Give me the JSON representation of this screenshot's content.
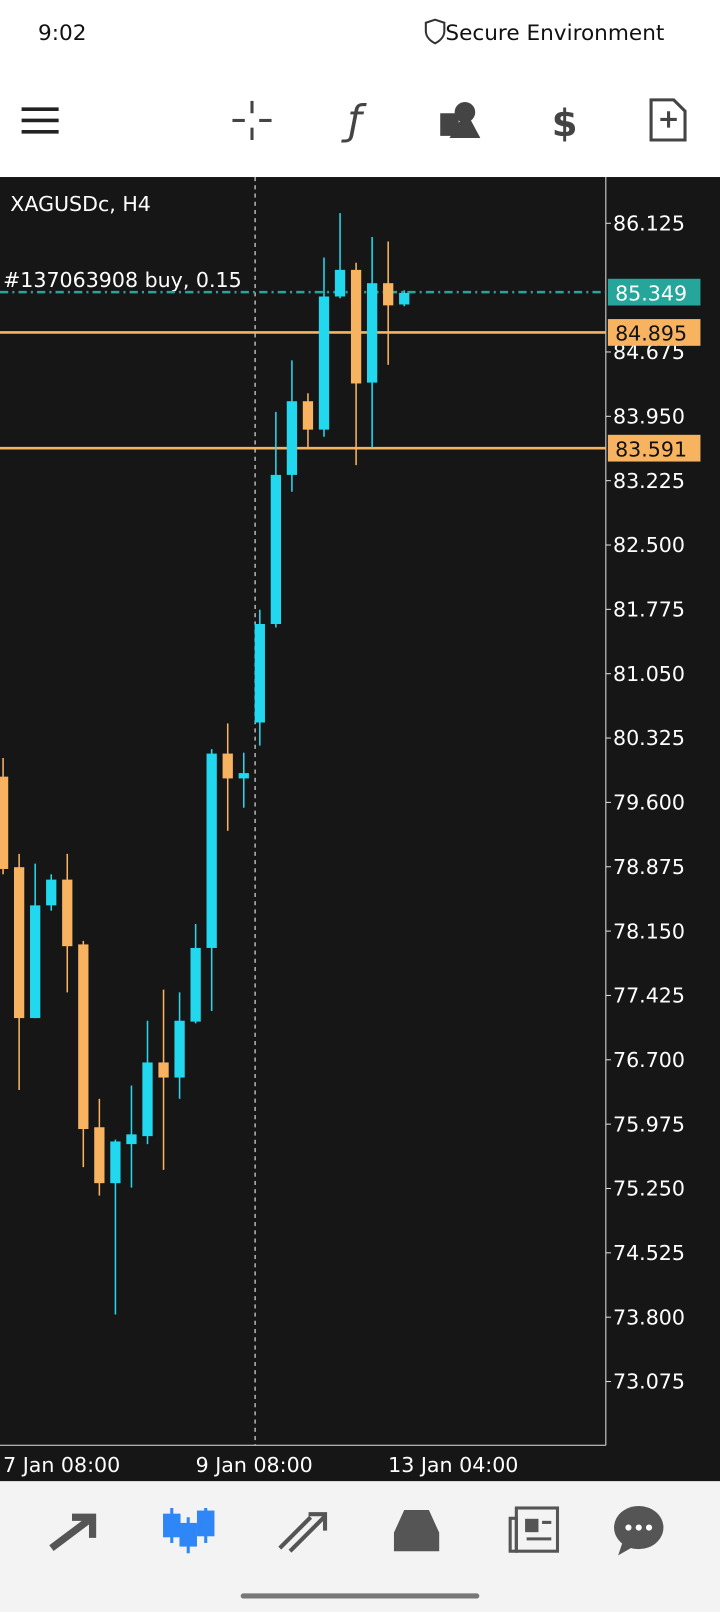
{
  "status_bar": {
    "time": "9:02",
    "secure": "Secure Environment"
  },
  "chart_data": {
    "type": "candlestick",
    "title": "XAGUSDc, H4",
    "annotation": "#137063908 buy, 0.15",
    "categories": [
      "7 Jan 08:00",
      null,
      null,
      null,
      null,
      null,
      null,
      null,
      null,
      null,
      null,
      null,
      "9 Jan 08:00",
      null,
      null,
      null,
      null,
      null,
      null,
      null,
      null,
      null,
      null,
      null,
      "13 Jan 04:00",
      null
    ],
    "open": [
      79.89,
      78.87,
      77.17,
      78.44,
      78.73,
      78.0,
      75.94,
      75.31,
      75.75,
      75.84,
      76.67,
      76.5,
      77.13,
      77.96,
      80.15,
      79.87,
      80.5,
      81.61,
      83.29,
      84.12,
      83.8,
      85.3,
      85.6,
      84.33,
      85.45,
      85.21
    ],
    "high": [
      80.1,
      79.02,
      78.91,
      78.79,
      79.02,
      78.04,
      76.26,
      75.8,
      76.41,
      77.14,
      77.49,
      77.46,
      78.23,
      80.2,
      80.49,
      80.16,
      81.77,
      84.0,
      84.58,
      84.21,
      85.74,
      86.24,
      85.68,
      85.97,
      85.92,
      85.37
    ],
    "low": [
      78.79,
      76.36,
      77.17,
      78.38,
      77.46,
      75.49,
      75.17,
      73.83,
      75.26,
      75.75,
      75.46,
      76.26,
      77.11,
      77.25,
      79.28,
      79.54,
      80.24,
      81.57,
      83.1,
      83.6,
      83.72,
      85.28,
      83.4,
      83.6,
      84.53,
      85.19
    ],
    "close": [
      78.85,
      77.17,
      78.44,
      78.73,
      77.98,
      75.92,
      75.31,
      75.78,
      75.86,
      76.67,
      76.5,
      77.14,
      77.96,
      80.15,
      79.87,
      79.93,
      81.61,
      83.29,
      84.12,
      83.8,
      85.3,
      85.6,
      84.32,
      85.45,
      85.2,
      85.34
    ],
    "up_color": "#22d8ee",
    "down_color": "#f7b360",
    "ylim": [
      72.357,
      86.646
    ],
    "yticks": [
      86.125,
      84.675,
      {
        "value": 83.95,
        "label": "83.950"
      },
      83.225,
      {
        "value": 82.5,
        "label": "82.500"
      },
      81.775,
      {
        "value": 81.05,
        "label": "81.050"
      },
      80.325,
      {
        "value": 79.6,
        "label": "79.600"
      },
      78.875,
      {
        "value": 78.15,
        "label": "78.150"
      },
      77.425,
      {
        "value": 76.7,
        "label": "76.700"
      },
      75.975,
      {
        "value": 75.25,
        "label": "75.250"
      },
      74.525,
      {
        "value": 73.8,
        "label": "73.800"
      },
      73.075
    ],
    "price_lines": [
      {
        "value": 85.349,
        "color": "#26a69a",
        "style": "dash-dot"
      },
      {
        "value": 84.895,
        "color": "#f7b360",
        "style": "solid"
      },
      {
        "value": 83.591,
        "color": "#f7b360",
        "style": "solid"
      }
    ]
  }
}
